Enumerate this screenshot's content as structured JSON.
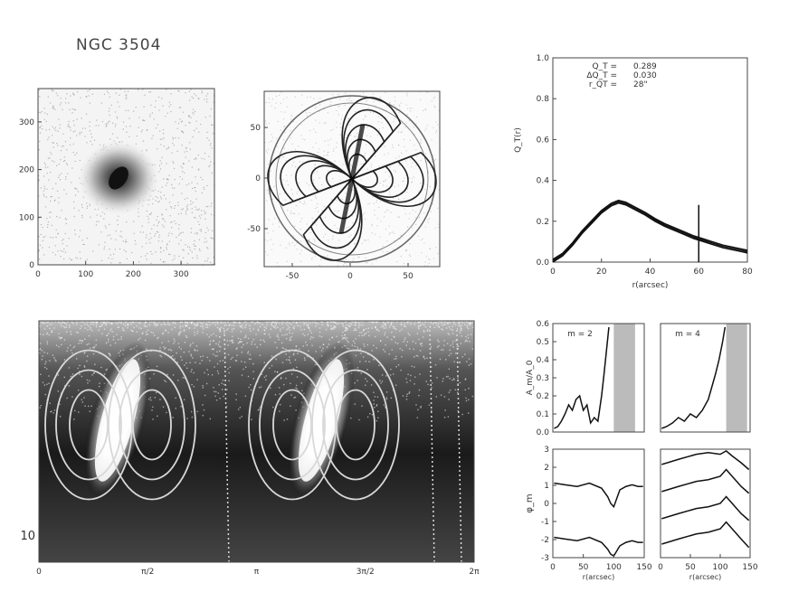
{
  "figure": {
    "title": "NGC 3504"
  },
  "chart_data": [
    {
      "type": "image",
      "panel": "galaxy-image",
      "xticks": [
        "0",
        "100",
        "200",
        "300"
      ],
      "yticks": [
        "0",
        "100",
        "200",
        "300"
      ],
      "xlim": [
        0,
        370
      ],
      "ylim": [
        0,
        370
      ]
    },
    {
      "type": "contour",
      "panel": "potential-map",
      "xticks": [
        "-50",
        "0",
        "50"
      ],
      "yticks": [
        "-50",
        "0",
        "50"
      ],
      "xlim": [
        -80,
        80
      ],
      "ylim": [
        -80,
        80
      ]
    },
    {
      "type": "line",
      "panel": "qt-profile",
      "xlabel": "r(arcsec)",
      "ylabel": "Q_T(r)",
      "xlim": [
        0,
        80
      ],
      "ylim": [
        0,
        1
      ],
      "xticks": [
        "0",
        "20",
        "40",
        "60",
        "80"
      ],
      "yticks": [
        "0.0",
        "0.2",
        "0.4",
        "0.6",
        "0.8",
        "1.0"
      ],
      "annotation": {
        "labels": [
          "Q_T =",
          "ΔQ_T =",
          "r_QT ="
        ],
        "values": [
          "0.289",
          "0.030",
          "28\""
        ]
      },
      "series": [
        {
          "x": [
            0,
            4,
            8,
            12,
            16,
            20,
            24,
            27,
            30,
            34,
            38,
            42,
            46,
            50,
            54,
            58,
            62,
            66,
            70,
            74,
            78,
            80
          ],
          "y": [
            0,
            0.03,
            0.08,
            0.14,
            0.19,
            0.24,
            0.275,
            0.289,
            0.28,
            0.255,
            0.23,
            0.2,
            0.175,
            0.155,
            0.135,
            0.115,
            0.1,
            0.085,
            0.07,
            0.06,
            0.05,
            0.045
          ]
        }
      ],
      "vline_x": 60
    },
    {
      "type": "heatmap",
      "panel": "polar-image",
      "xticks": [
        "0",
        "π/2",
        "π",
        "3π/2",
        "2π"
      ],
      "yticks": [
        "10"
      ]
    },
    {
      "type": "line",
      "panel": "amplitude-m2",
      "legend": "m = 2",
      "ylabel": "A_m/A_0",
      "xlim": [
        0,
        150
      ],
      "ylim": [
        0,
        0.6
      ],
      "yticks": [
        "0.0",
        "0.1",
        "0.2",
        "0.3",
        "0.4",
        "0.5",
        "0.6"
      ],
      "x": [
        2,
        8,
        14,
        20,
        26,
        32,
        38,
        44,
        50,
        56,
        62,
        68,
        74,
        80,
        84,
        88,
        92
      ],
      "y": [
        0.02,
        0.03,
        0.06,
        0.1,
        0.15,
        0.12,
        0.18,
        0.2,
        0.12,
        0.15,
        0.05,
        0.08,
        0.06,
        0.2,
        0.32,
        0.45,
        0.58
      ],
      "shade_x": [
        100,
        135
      ]
    },
    {
      "type": "line",
      "panel": "amplitude-m4",
      "legend": "m = 4",
      "xlim": [
        0,
        150
      ],
      "ylim": [
        0,
        0.6
      ],
      "x": [
        2,
        10,
        20,
        30,
        40,
        50,
        60,
        70,
        80,
        86,
        92,
        98,
        104,
        108
      ],
      "y": [
        0.02,
        0.03,
        0.05,
        0.08,
        0.06,
        0.1,
        0.08,
        0.12,
        0.18,
        0.25,
        0.32,
        0.4,
        0.5,
        0.58
      ],
      "shade_x": [
        110,
        145
      ]
    },
    {
      "type": "line",
      "panel": "phase-m2",
      "ylabel": "φ_m",
      "xlabel": "r(arcsec)",
      "xlim": [
        0,
        150
      ],
      "ylim": [
        -3.2,
        3.2
      ],
      "xticks": [
        "0",
        "50",
        "100",
        "150"
      ],
      "yticks": [
        "3",
        "2",
        "1",
        "0",
        "-1",
        "-2",
        "-3"
      ],
      "series": [
        {
          "x": [
            2,
            20,
            40,
            60,
            80,
            90,
            95,
            100,
            110,
            120,
            130,
            140,
            148
          ],
          "y": [
            1.2,
            1.1,
            1.0,
            1.2,
            0.9,
            0.4,
            0.0,
            -0.2,
            0.8,
            1.0,
            1.1,
            1.0,
            1.0
          ]
        },
        {
          "x": [
            2,
            20,
            40,
            60,
            80,
            90,
            95,
            100,
            110,
            120,
            130,
            140,
            148
          ],
          "y": [
            -2.0,
            -2.1,
            -2.2,
            -2.0,
            -2.3,
            -2.7,
            -3.0,
            -3.1,
            -2.5,
            -2.3,
            -2.2,
            -2.3,
            -2.3
          ]
        }
      ]
    },
    {
      "type": "line",
      "panel": "phase-m4",
      "xlabel": "r(arcsec)",
      "xlim": [
        0,
        150
      ],
      "ylim": [
        -3.2,
        3.2
      ],
      "xticks": [
        "0",
        "50",
        "100",
        "150"
      ],
      "series": [
        {
          "x": [
            2,
            30,
            60,
            80,
            100,
            110,
            120,
            135,
            148
          ],
          "y": [
            2.3,
            2.6,
            2.9,
            3.0,
            2.9,
            3.1,
            2.8,
            2.4,
            2.0
          ]
        },
        {
          "x": [
            2,
            30,
            60,
            80,
            100,
            110,
            120,
            135,
            148
          ],
          "y": [
            0.7,
            1.0,
            1.3,
            1.4,
            1.6,
            2.0,
            1.6,
            1.0,
            0.6
          ]
        },
        {
          "x": [
            2,
            30,
            60,
            80,
            100,
            110,
            120,
            135,
            148
          ],
          "y": [
            -0.9,
            -0.6,
            -0.3,
            -0.2,
            0.0,
            0.4,
            0.0,
            -0.6,
            -1.0
          ]
        },
        {
          "x": [
            2,
            30,
            60,
            80,
            100,
            110,
            120,
            135,
            148
          ],
          "y": [
            -2.4,
            -2.1,
            -1.8,
            -1.7,
            -1.5,
            -1.1,
            -1.5,
            -2.1,
            -2.6
          ]
        }
      ]
    }
  ]
}
